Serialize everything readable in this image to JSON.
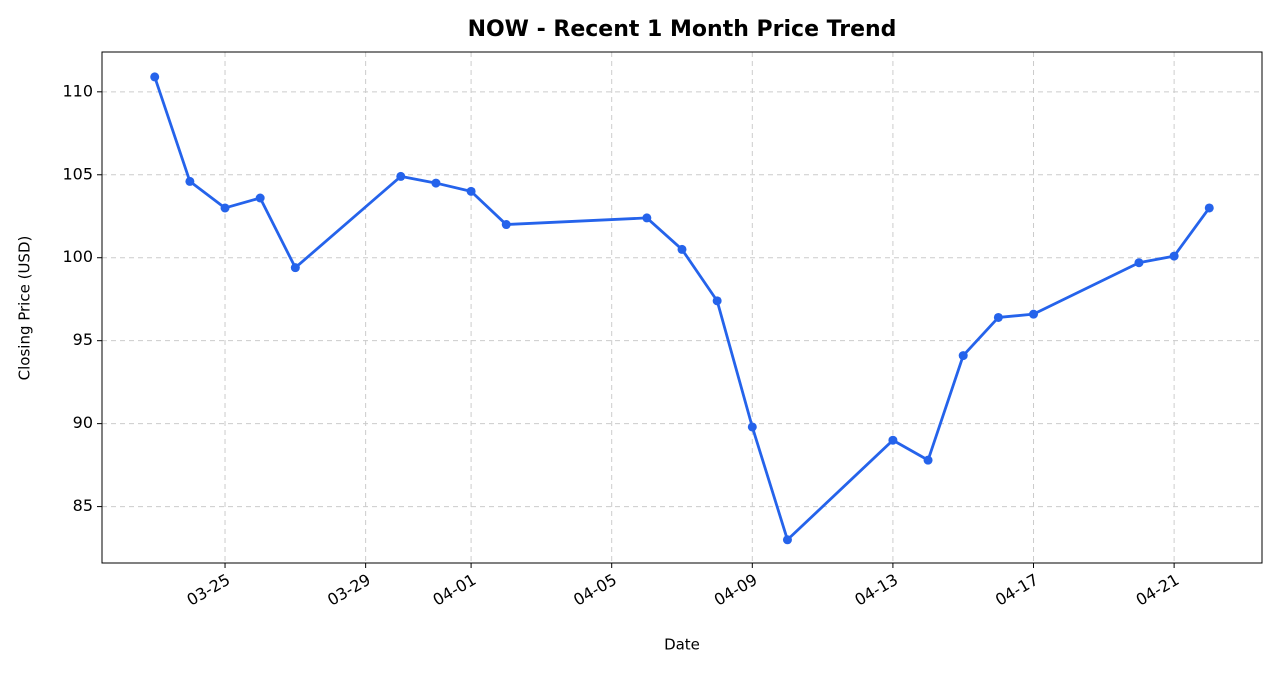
{
  "chart_data": {
    "type": "line",
    "title": "NOW - Recent 1 Month Price Trend",
    "x_label": "Date",
    "y_label": "Closing Price (USD)",
    "x": [
      "03-23",
      "03-24",
      "03-25",
      "03-26",
      "03-27",
      "03-30",
      "03-31",
      "04-01",
      "04-02",
      "04-06",
      "04-07",
      "04-08",
      "04-09",
      "04-10",
      "04-13",
      "04-14",
      "04-15",
      "04-16",
      "04-17",
      "04-20",
      "04-21",
      "04-22"
    ],
    "series": [
      {
        "name": "NOW",
        "color": "#2563eb",
        "values": [
          110.9,
          104.6,
          103.0,
          103.6,
          99.4,
          104.9,
          104.5,
          104.0,
          102.0,
          102.4,
          100.5,
          97.4,
          89.8,
          83.0,
          89.0,
          87.8,
          94.1,
          96.4,
          96.6,
          99.7,
          100.1,
          103.0
        ]
      }
    ],
    "xlim": [
      "03-21 12:00",
      "04-23 12:00"
    ],
    "xticks": [
      "03-25",
      "03-29",
      "04-01",
      "04-05",
      "04-09",
      "04-13",
      "04-17",
      "04-21"
    ],
    "ylim": [
      81.6,
      112.4
    ],
    "yticks": [
      85,
      90,
      95,
      100,
      105,
      110
    ],
    "grid": true
  }
}
